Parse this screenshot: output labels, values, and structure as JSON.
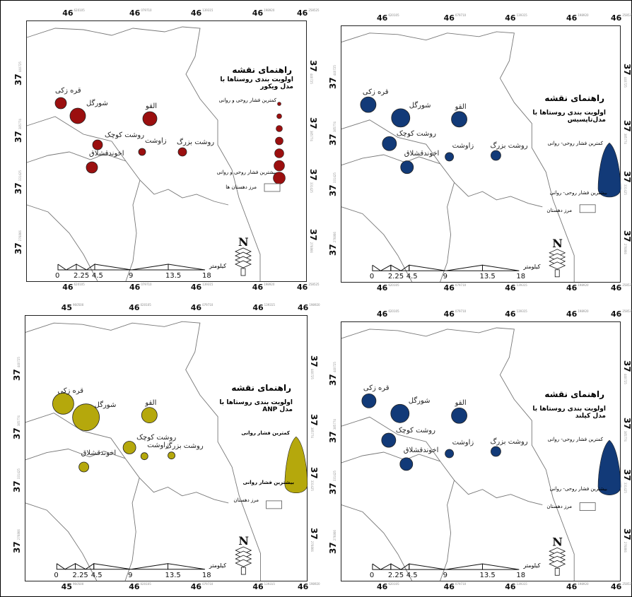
{
  "maps": [
    {
      "id": "vikor",
      "top_ticks": [
        {
          "main": "46",
          "sub": "620105"
        },
        {
          "main": "46",
          "sub": "079710"
        },
        {
          "main": "46",
          "sub": "139315"
        },
        {
          "main": "46",
          "sub": "198920"
        },
        {
          "main": "46",
          "sub": "258525"
        }
      ],
      "bottom_ticks": [
        {
          "main": "46",
          "sub": "620105"
        },
        {
          "main": "46",
          "sub": "079710"
        },
        {
          "main": "46",
          "sub": "139315"
        },
        {
          "main": "46",
          "sub": "198920"
        },
        {
          "main": "46",
          "sub": "258525"
        }
      ],
      "left_ticks": [
        {
          "main": "37",
          "sub": "440725"
        },
        {
          "main": "37",
          "sub": "385774"
        },
        {
          "main": "37",
          "sub": "331425"
        },
        {
          "main": "37",
          "sub": "276866"
        }
      ],
      "right_ticks": [
        {
          "main": "37",
          "sub": "440725"
        },
        {
          "main": "37",
          "sub": "385774"
        },
        {
          "main": "37",
          "sub": "331425"
        },
        {
          "main": "37",
          "sub": "276866"
        }
      ],
      "legend_title": "راهنمای نقشه",
      "legend_subtitle": "اولویت بندی روستاها با مدل ویکور",
      "legend_low": "کمترین فشار روحی و روانی",
      "legend_high": "بیشترین فشار روحی و روانی",
      "legend_boundary": "مرز دهستان ها",
      "scale_labels": [
        "0",
        "2.25",
        "4.5",
        "9",
        "13.5",
        "18"
      ],
      "scale_unit": "کیلومتر",
      "color": "#9b0f0f",
      "villages": [
        "قره زکی",
        "شورگل",
        "القو",
        "روشت کوچک",
        "زاوشت",
        "روشت بزرگ",
        "اخوندقشلاق"
      ]
    },
    {
      "id": "topsis",
      "top_ticks": [
        {
          "main": "46",
          "sub": "620105"
        },
        {
          "main": "46",
          "sub": "079710"
        },
        {
          "main": "46",
          "sub": "139315"
        },
        {
          "main": "46",
          "sub": "198920"
        },
        {
          "main": "46",
          "sub": "258525"
        }
      ],
      "bottom_ticks": [
        {
          "main": "46",
          "sub": "620105"
        },
        {
          "main": "46",
          "sub": "079710"
        },
        {
          "main": "46",
          "sub": "139315"
        },
        {
          "main": "46",
          "sub": "198920"
        },
        {
          "main": "46",
          "sub": "258525"
        }
      ],
      "left_ticks": [
        {
          "main": "37",
          "sub": "440725"
        },
        {
          "main": "37",
          "sub": "385774"
        },
        {
          "main": "37",
          "sub": "331425"
        },
        {
          "main": "37",
          "sub": "276866"
        }
      ],
      "right_ticks": [
        {
          "main": "37",
          "sub": "440725"
        },
        {
          "main": "37",
          "sub": "385774"
        },
        {
          "main": "37",
          "sub": "331425"
        },
        {
          "main": "37",
          "sub": "276866"
        }
      ],
      "legend_title": "راهنمای نقشه",
      "legend_subtitle": "اولویت بندی روستاها با مدل‌تاپسیس",
      "legend_low": "کمترین فشار روحی- روانی",
      "legend_high": "بیشترین فشار روحی- روانی",
      "legend_boundary": "مرز دهستان",
      "scale_labels": [
        "0",
        "2.25",
        "4.5",
        "9",
        "13.5",
        "18"
      ],
      "scale_unit": "کیلومتر",
      "color": "#123a78",
      "villages": [
        "قره زکی",
        "شورگل",
        "القو",
        "روشت کوچک",
        "زاوشت",
        "روشت بزرگ",
        "اخوندقشلاق"
      ]
    },
    {
      "id": "anp",
      "top_ticks": [
        {
          "main": "45",
          "sub": "960500"
        },
        {
          "main": "46",
          "sub": "020105"
        },
        {
          "main": "46",
          "sub": "079710"
        },
        {
          "main": "46",
          "sub": "139315"
        },
        {
          "main": "46",
          "sub": "198920"
        }
      ],
      "bottom_ticks": [
        {
          "main": "45",
          "sub": "960500"
        },
        {
          "main": "46",
          "sub": "020105"
        },
        {
          "main": "46",
          "sub": "079710"
        },
        {
          "main": "46",
          "sub": "139315"
        },
        {
          "main": "46",
          "sub": "198920"
        }
      ],
      "left_ticks": [
        {
          "main": "37",
          "sub": "440725"
        },
        {
          "main": "37",
          "sub": "385774"
        },
        {
          "main": "37",
          "sub": "331425"
        },
        {
          "main": "37",
          "sub": "276866"
        }
      ],
      "right_ticks": [
        {
          "main": "37",
          "sub": "440725"
        },
        {
          "main": "37",
          "sub": "385774"
        },
        {
          "main": "37",
          "sub": "331425"
        },
        {
          "main": "37",
          "sub": "276866"
        }
      ],
      "legend_title": "راهنمای نقشه",
      "legend_subtitle": "اولویت بندی روستاها با مدل ANP",
      "legend_low": "کمترین فشار روانی",
      "legend_high": "بیشترین فشار روانی",
      "legend_boundary": "مرز دهستان",
      "scale_labels": [
        "0",
        "2.25",
        "4.5",
        "9",
        "13.5",
        "18"
      ],
      "scale_unit": "کیلومتر",
      "color": "#b5a80c",
      "villages": [
        "قره زکی",
        "شورگل",
        "القو",
        "روشت کوچک",
        "زاوشت",
        "روشت بزرگ",
        "اخوندقشلاق"
      ]
    },
    {
      "id": "copeland",
      "top_ticks": [
        {
          "main": "46",
          "sub": "620105"
        },
        {
          "main": "46",
          "sub": "079710"
        },
        {
          "main": "46",
          "sub": "139315"
        },
        {
          "main": "46",
          "sub": "198920"
        },
        {
          "main": "46",
          "sub": "258525"
        }
      ],
      "bottom_ticks": [
        {
          "main": "46",
          "sub": "620105"
        },
        {
          "main": "46",
          "sub": "079710"
        },
        {
          "main": "46",
          "sub": "139315"
        },
        {
          "main": "46",
          "sub": "198920"
        },
        {
          "main": "46",
          "sub": "258525"
        }
      ],
      "left_ticks": [
        {
          "main": "37",
          "sub": "440725"
        },
        {
          "main": "37",
          "sub": "385774"
        },
        {
          "main": "37",
          "sub": "331425"
        },
        {
          "main": "37",
          "sub": "276866"
        }
      ],
      "right_ticks": [
        {
          "main": "37",
          "sub": "440725"
        },
        {
          "main": "37",
          "sub": "385774"
        },
        {
          "main": "37",
          "sub": "331425"
        },
        {
          "main": "37",
          "sub": "276866"
        }
      ],
      "legend_title": "راهنمای نقشه",
      "legend_subtitle": "اولویت بندی روستاها با مدل کپلند",
      "legend_low": "کمترین فشار روحی- روانی",
      "legend_high": "بیشترین فشار روحی- روانی",
      "legend_boundary": "مرز دهستان",
      "scale_labels": [
        "0",
        "2.25",
        "4.5",
        "9",
        "13.5",
        "18"
      ],
      "scale_unit": "کیلومتر",
      "color": "#123a78",
      "villages": [
        "قره زکی",
        "شورگل",
        "القو",
        "روشت کوچک",
        "زاوشت",
        "روشت بزرگ",
        "اخوندقشلاق"
      ]
    }
  ]
}
